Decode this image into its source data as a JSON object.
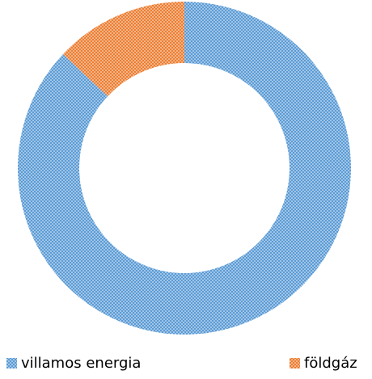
{
  "chart_data": {
    "type": "donut",
    "categories": [
      "villamos energia",
      "földgáz"
    ],
    "values": [
      87,
      13
    ],
    "colors": [
      "#5b9bd5",
      "#ed7d31"
    ],
    "legend": "bottom"
  }
}
